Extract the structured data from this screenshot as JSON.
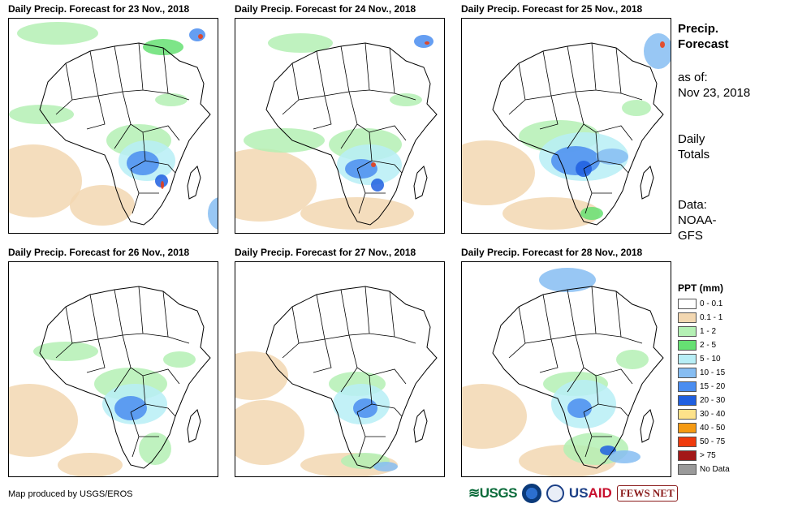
{
  "panels": [
    {
      "title": "Daily Precip. Forecast for 23 Nov., 2018"
    },
    {
      "title": "Daily Precip. Forecast for 24 Nov., 2018"
    },
    {
      "title": "Daily Precip. Forecast for 25 Nov., 2018"
    },
    {
      "title": "Daily Precip. Forecast for 26 Nov., 2018"
    },
    {
      "title": "Daily Precip. Forecast for 27 Nov., 2018"
    },
    {
      "title": "Daily Precip. Forecast for 28 Nov., 2018"
    }
  ],
  "sidebar": {
    "title_line1": "Precip.",
    "title_line2": "Forecast",
    "asof_label": "as of:",
    "asof_date": "Nov 23, 2018",
    "totals_line1": "Daily",
    "totals_line2": "Totals",
    "data_line1": "Data:",
    "data_line2": "NOAA-",
    "data_line3": "GFS"
  },
  "legend": {
    "title": "PPT (mm)",
    "items": [
      {
        "label": "0 - 0.1",
        "color": "#ffffff"
      },
      {
        "label": "0.1 - 1",
        "color": "#f2d7b1"
      },
      {
        "label": "1 - 2",
        "color": "#b4f0b4"
      },
      {
        "label": "2 - 5",
        "color": "#66e073"
      },
      {
        "label": "5 - 10",
        "color": "#b7eef6"
      },
      {
        "label": "10 - 15",
        "color": "#86bdf2"
      },
      {
        "label": "15 - 20",
        "color": "#4a8df0"
      },
      {
        "label": "20 - 30",
        "color": "#1f5fe0"
      },
      {
        "label": "30 - 40",
        "color": "#fde28a"
      },
      {
        "label": "40 - 50",
        "color": "#f59a12"
      },
      {
        "label": "50 - 75",
        "color": "#ef3a0c"
      },
      {
        "label": "> 75",
        "color": "#a31818"
      },
      {
        "label": "No Data",
        "color": "#9a9a9a"
      }
    ]
  },
  "footer": {
    "credit": "Map produced by USGS/EROS",
    "logo_usgs": "≋USGS",
    "logo_usaid_a": "US",
    "logo_usaid_b": "AID",
    "logo_fews": "FEWS NET"
  }
}
